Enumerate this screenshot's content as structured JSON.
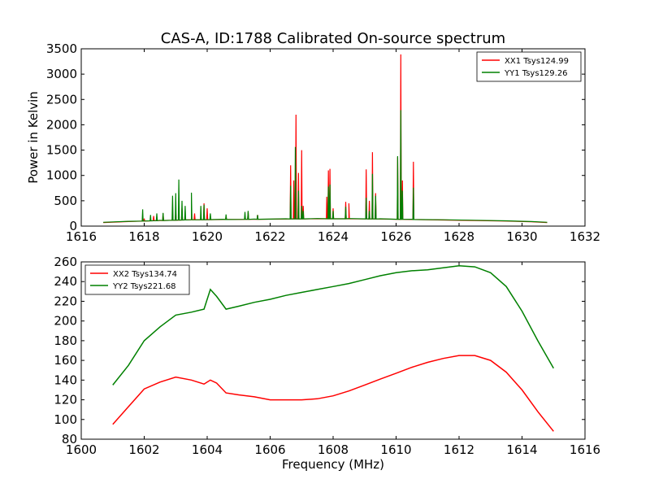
{
  "figure_title": "CAS-A, ID:1788 Calibrated On-source spectrum",
  "colors": {
    "xx": "#ff0000",
    "yy": "#008000",
    "axes": "#000000",
    "background": "#ffffff"
  },
  "chart_data": [
    {
      "type": "line",
      "title": "CAS-A, ID:1788 Calibrated On-source spectrum",
      "xlabel": "",
      "ylabel": "Power in Kelvin",
      "xlim": [
        1616,
        1632
      ],
      "ylim": [
        0,
        3500
      ],
      "xticks": [
        "1616",
        "1618",
        "1620",
        "1622",
        "1624",
        "1626",
        "1628",
        "1630",
        "1632"
      ],
      "yticks": [
        "0",
        "500",
        "1000",
        "1500",
        "2000",
        "2500",
        "3000",
        "3500"
      ],
      "grid": false,
      "legend_position": "top-right",
      "baseline": {
        "x": [
          1616.7,
          1617.5,
          1618.5,
          1619.5,
          1620.5,
          1621.5,
          1622.5,
          1623.5,
          1624.5,
          1625.5,
          1626.5,
          1627.5,
          1628.5,
          1629.5,
          1630.3,
          1630.8
        ],
        "y": [
          70,
          90,
          110,
          125,
          130,
          135,
          140,
          145,
          145,
          140,
          130,
          120,
          110,
          100,
          85,
          70
        ]
      },
      "series": [
        {
          "name": "XX1 Tsys124.99",
          "color": "#ff0000",
          "spikes": [
            [
              1618.0,
              150
            ],
            [
              1618.3,
              200
            ],
            [
              1618.6,
              250
            ],
            [
              1619.0,
              300
            ],
            [
              1619.2,
              350
            ],
            [
              1619.5,
              400
            ],
            [
              1619.6,
              250
            ],
            [
              1619.9,
              450
            ],
            [
              1620.0,
              350
            ],
            [
              1620.6,
              200
            ],
            [
              1621.3,
              280
            ],
            [
              1621.6,
              220
            ],
            [
              1622.65,
              1200
            ],
            [
              1622.75,
              900
            ],
            [
              1622.82,
              2200
            ],
            [
              1622.9,
              1050
            ],
            [
              1623.0,
              1500
            ],
            [
              1623.05,
              400
            ],
            [
              1623.8,
              580
            ],
            [
              1623.85,
              1100
            ],
            [
              1623.9,
              1130
            ],
            [
              1624.0,
              350
            ],
            [
              1624.4,
              480
            ],
            [
              1624.5,
              450
            ],
            [
              1625.05,
              1120
            ],
            [
              1625.15,
              500
            ],
            [
              1625.25,
              1460
            ],
            [
              1625.35,
              650
            ],
            [
              1626.05,
              1360
            ],
            [
              1626.15,
              3390
            ],
            [
              1626.2,
              900
            ],
            [
              1626.55,
              1270
            ]
          ]
        },
        {
          "name": "YY1 Tsys129.26",
          "color": "#008000",
          "spikes": [
            [
              1617.95,
              330
            ],
            [
              1618.2,
              220
            ],
            [
              1618.4,
              250
            ],
            [
              1618.6,
              260
            ],
            [
              1618.9,
              600
            ],
            [
              1619.0,
              650
            ],
            [
              1619.1,
              920
            ],
            [
              1619.2,
              500
            ],
            [
              1619.3,
              400
            ],
            [
              1619.5,
              660
            ],
            [
              1619.8,
              400
            ],
            [
              1619.9,
              420
            ],
            [
              1620.1,
              250
            ],
            [
              1620.6,
              230
            ],
            [
              1621.2,
              280
            ],
            [
              1621.3,
              300
            ],
            [
              1621.6,
              220
            ],
            [
              1622.65,
              800
            ],
            [
              1622.8,
              1560
            ],
            [
              1622.9,
              700
            ],
            [
              1623.0,
              400
            ],
            [
              1623.05,
              300
            ],
            [
              1623.85,
              780
            ],
            [
              1623.9,
              820
            ],
            [
              1624.0,
              300
            ],
            [
              1624.4,
              380
            ],
            [
              1625.05,
              560
            ],
            [
              1625.15,
              300
            ],
            [
              1625.25,
              1030
            ],
            [
              1625.35,
              600
            ],
            [
              1626.05,
              1380
            ],
            [
              1626.15,
              2290
            ],
            [
              1626.2,
              700
            ],
            [
              1626.55,
              760
            ]
          ]
        }
      ]
    },
    {
      "type": "line",
      "title": "",
      "xlabel": "Frequency (MHz)",
      "ylabel": "",
      "xlim": [
        1600,
        1616
      ],
      "ylim": [
        80,
        260
      ],
      "xticks": [
        "1600",
        "1602",
        "1604",
        "1606",
        "1608",
        "1610",
        "1612",
        "1614",
        "1616"
      ],
      "yticks": [
        "80",
        "100",
        "120",
        "140",
        "160",
        "180",
        "200",
        "220",
        "240",
        "260"
      ],
      "grid": false,
      "legend_position": "top-left",
      "series": [
        {
          "name": "XX2 Tsys134.74",
          "color": "#ff0000",
          "x": [
            1601.0,
            1601.5,
            1602.0,
            1602.5,
            1603.0,
            1603.5,
            1603.9,
            1604.1,
            1604.3,
            1604.6,
            1605.0,
            1605.5,
            1606.0,
            1606.5,
            1607.0,
            1607.5,
            1608.0,
            1608.5,
            1609.0,
            1609.5,
            1610.0,
            1610.5,
            1611.0,
            1611.5,
            1612.0,
            1612.5,
            1613.0,
            1613.5,
            1614.0,
            1614.5,
            1615.0
          ],
          "y": [
            95,
            113,
            131,
            138,
            143,
            140,
            136,
            140,
            137,
            127,
            125,
            123,
            120,
            120,
            120,
            121,
            124,
            129,
            135,
            141,
            147,
            153,
            158,
            162,
            165,
            165,
            160,
            148,
            130,
            108,
            88
          ]
        },
        {
          "name": "YY2 Tsys221.68",
          "color": "#008000",
          "x": [
            1601.0,
            1601.5,
            1602.0,
            1602.5,
            1603.0,
            1603.5,
            1603.9,
            1604.1,
            1604.3,
            1604.6,
            1605.0,
            1605.5,
            1606.0,
            1606.5,
            1607.0,
            1607.5,
            1608.0,
            1608.5,
            1609.0,
            1609.5,
            1610.0,
            1610.5,
            1611.0,
            1611.5,
            1612.0,
            1612.5,
            1613.0,
            1613.5,
            1614.0,
            1614.5,
            1615.0
          ],
          "y": [
            135,
            155,
            180,
            194,
            206,
            209,
            212,
            232,
            225,
            212,
            215,
            219,
            222,
            226,
            229,
            232,
            235,
            238,
            242,
            246,
            249,
            251,
            252,
            254,
            256,
            255,
            249,
            235,
            210,
            180,
            152
          ]
        }
      ]
    }
  ]
}
